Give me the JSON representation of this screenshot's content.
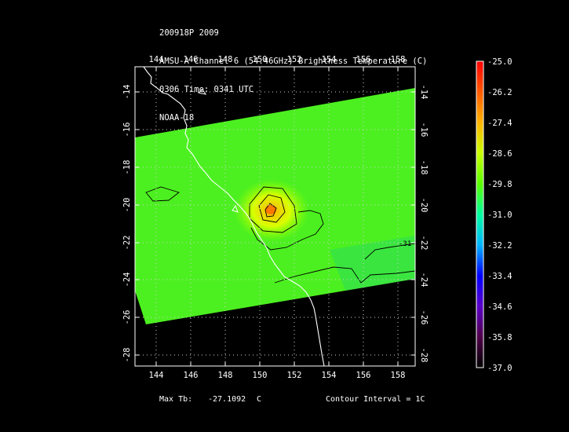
{
  "header": {
    "line1": "200918P 2009",
    "line2": "AMSU-A Channel 6 (54.46GHz) Brightness Temperature (C)",
    "line3": "0306 Time: 0341 UTC",
    "line4": "NOAA-18"
  },
  "map": {
    "lon_ticks": [
      "144",
      "146",
      "148",
      "150",
      "152",
      "154",
      "156",
      "158"
    ],
    "lat_ticks": [
      "-14",
      "-16",
      "-18",
      "-20",
      "-22",
      "-24",
      "-26",
      "-28"
    ],
    "lon_range": [
      142.9,
      158.8
    ],
    "lat_range": [
      -12.3,
      -28.5
    ],
    "contour_label": "-31"
  },
  "colorbar": {
    "labels": [
      "-25.0",
      "-26.2",
      "-27.4",
      "-28.6",
      "-29.8",
      "-31.0",
      "-32.2",
      "-33.4",
      "-34.6",
      "-35.8",
      "-37.0"
    ],
    "colors": [
      "#ff0000",
      "#ff5a00",
      "#ffb400",
      "#c8ff00",
      "#5aff00",
      "#00ffa0",
      "#00b4ff",
      "#0000ff",
      "#5a00c8",
      "#50004a",
      "#000000"
    ]
  },
  "footer": {
    "max_label": "Max Tb:",
    "max_value": "-27.1092",
    "max_unit": "C",
    "contour": "Contour Interval = 1C"
  }
}
